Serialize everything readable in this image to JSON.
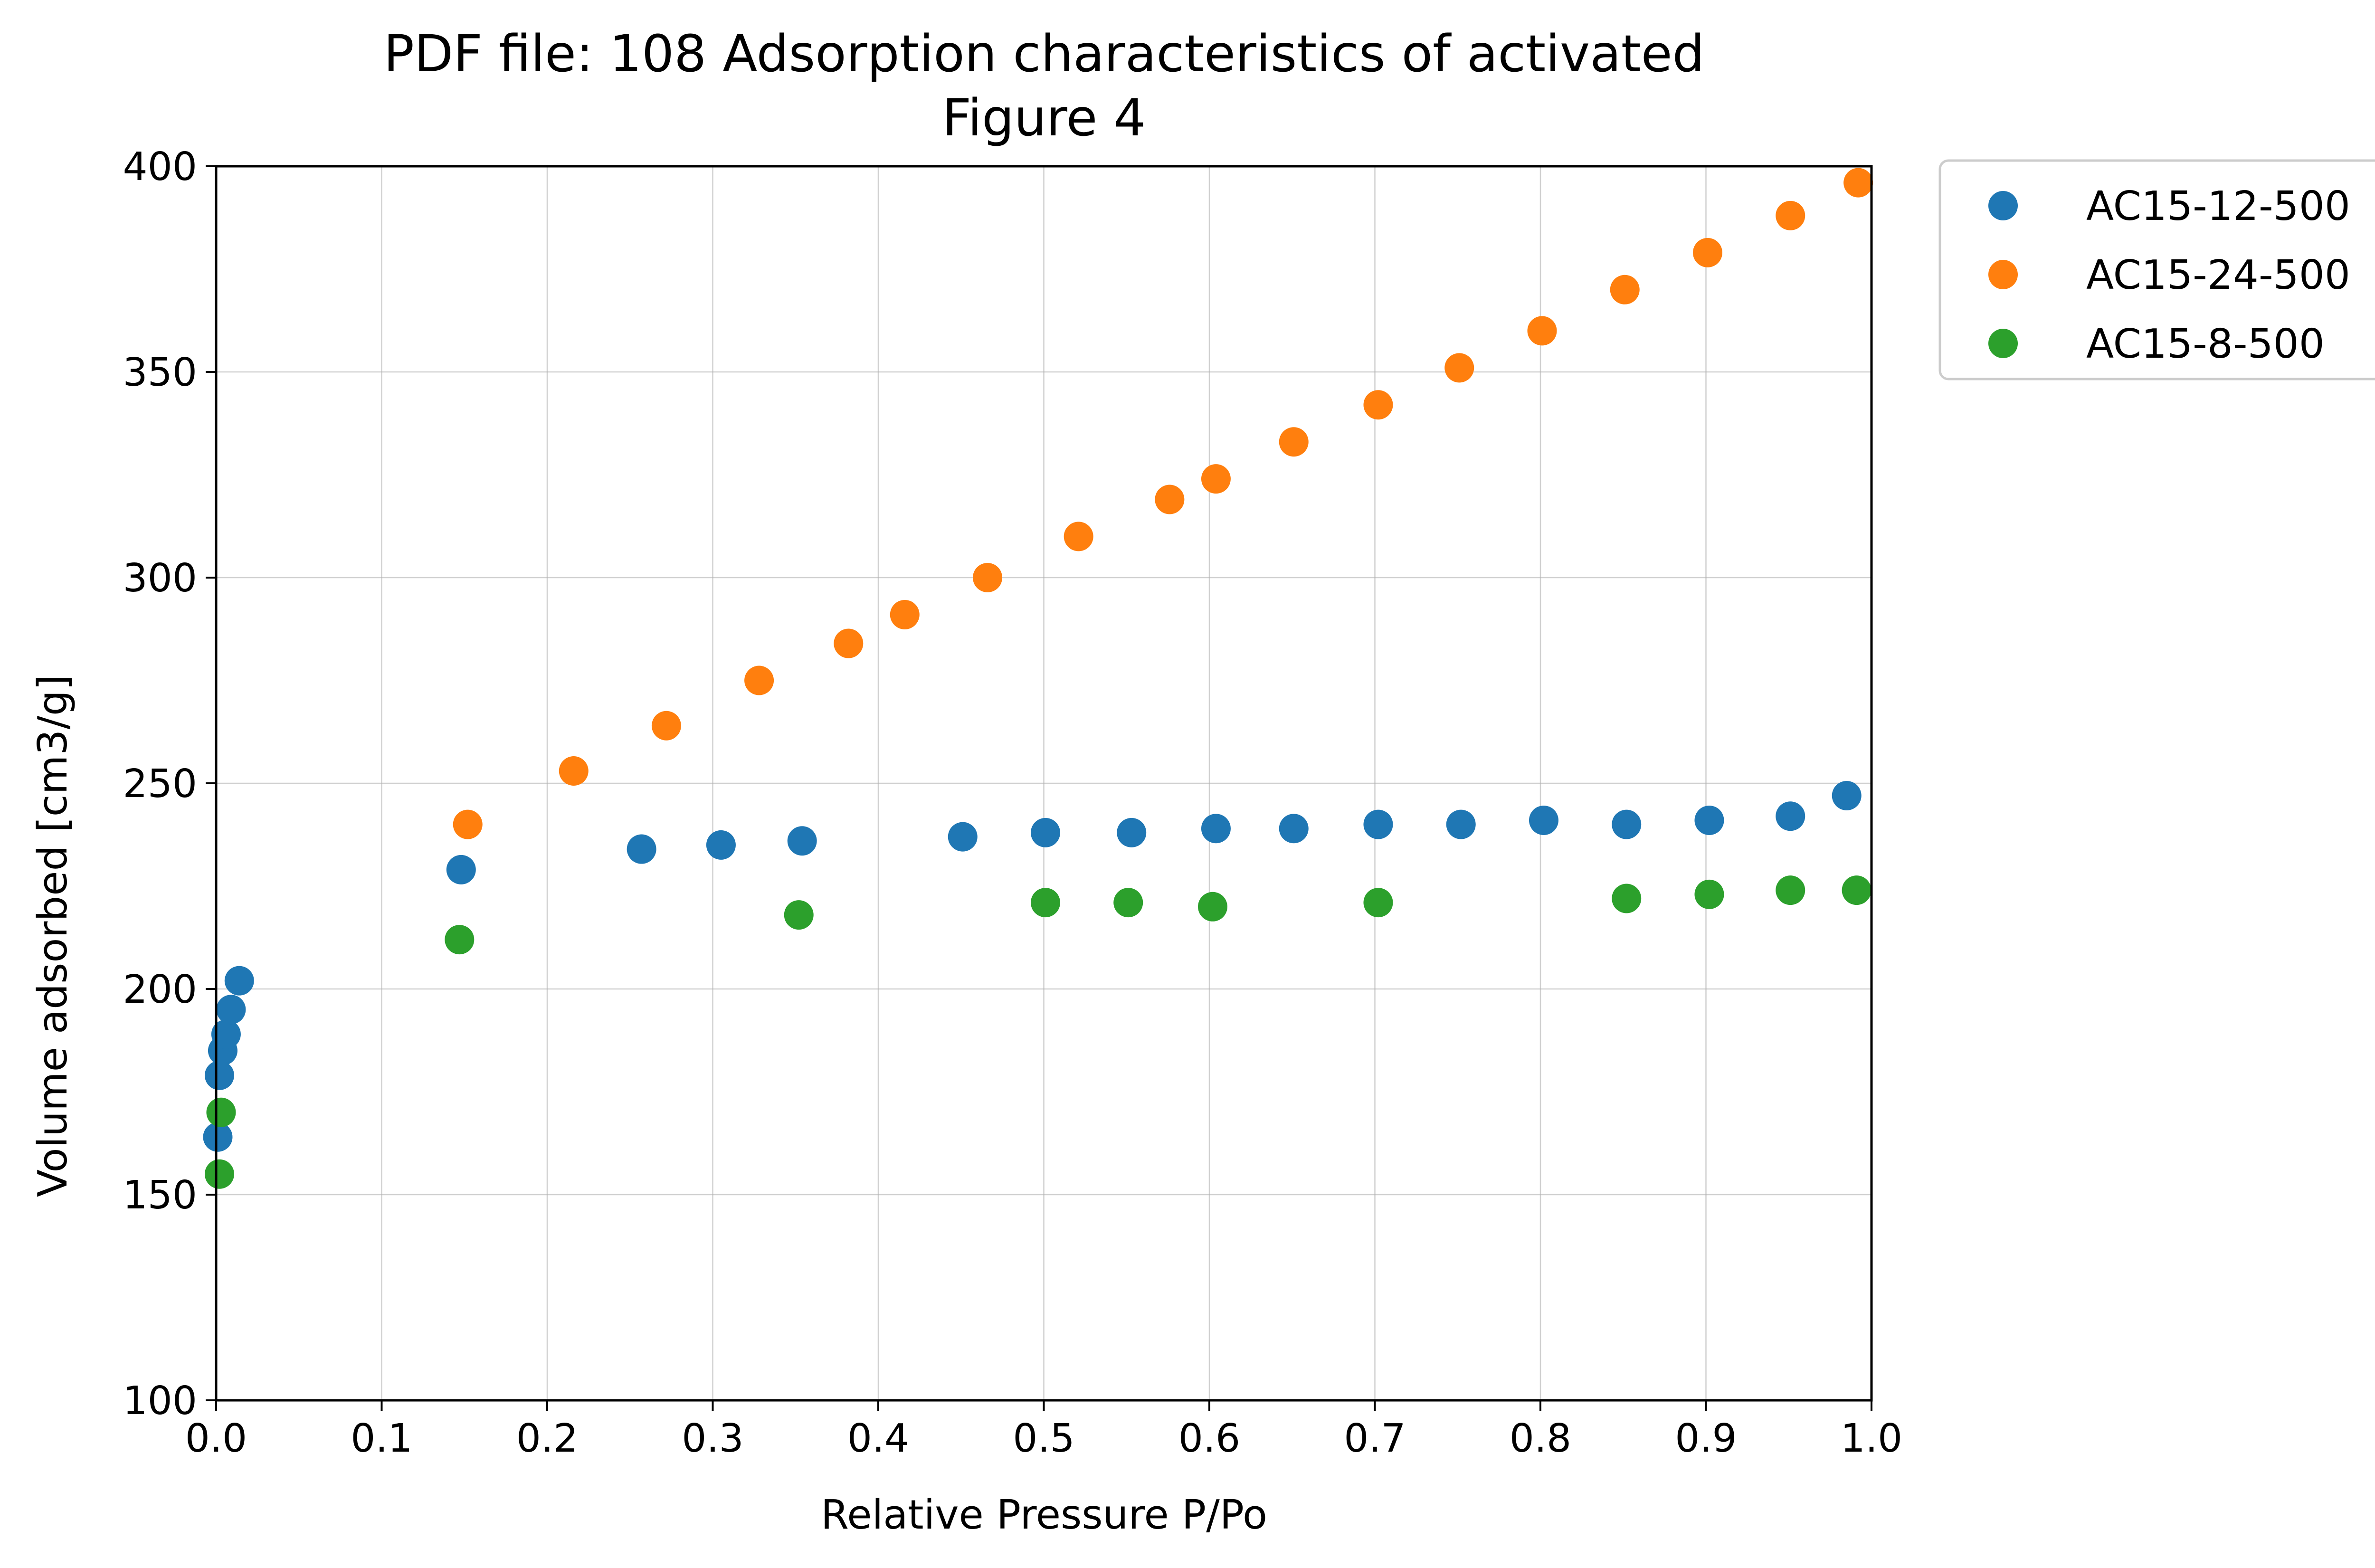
{
  "chart_data": {
    "type": "scatter",
    "title": [
      "PDF file: 108 Adsorption characteristics of activated",
      "Figure 4"
    ],
    "xlabel": "Relative Pressure P/Po",
    "ylabel": "Volume adsorbed [cm3/g]",
    "xlim": [
      0.0,
      1.0
    ],
    "ylim": [
      100,
      400
    ],
    "xticks": [
      "0.0",
      "0.1",
      "0.2",
      "0.3",
      "0.4",
      "0.5",
      "0.6",
      "0.7",
      "0.8",
      "0.9",
      "1.0"
    ],
    "yticks": [
      "100",
      "150",
      "200",
      "250",
      "300",
      "350",
      "400"
    ],
    "grid": true,
    "legend_position": "outside-top-right",
    "series": [
      {
        "name": "AC15-12-500",
        "color": "#1f77b4",
        "points": [
          [
            0.001,
            164
          ],
          [
            0.002,
            179
          ],
          [
            0.004,
            185
          ],
          [
            0.006,
            189
          ],
          [
            0.009,
            195
          ],
          [
            0.014,
            202
          ],
          [
            0.148,
            229
          ],
          [
            0.257,
            234
          ],
          [
            0.305,
            235
          ],
          [
            0.354,
            236
          ],
          [
            0.451,
            237
          ],
          [
            0.501,
            238
          ],
          [
            0.553,
            238
          ],
          [
            0.604,
            239
          ],
          [
            0.651,
            239
          ],
          [
            0.702,
            240
          ],
          [
            0.752,
            240
          ],
          [
            0.802,
            241
          ],
          [
            0.852,
            240
          ],
          [
            0.902,
            241
          ],
          [
            0.951,
            242
          ],
          [
            0.985,
            247
          ]
        ]
      },
      {
        "name": "AC15-24-500",
        "color": "#ff7f0e",
        "points": [
          [
            0.152,
            240
          ],
          [
            0.216,
            253
          ],
          [
            0.272,
            264
          ],
          [
            0.328,
            275
          ],
          [
            0.382,
            284
          ],
          [
            0.416,
            291
          ],
          [
            0.466,
            300
          ],
          [
            0.521,
            310
          ],
          [
            0.576,
            319
          ],
          [
            0.604,
            324
          ],
          [
            0.651,
            333
          ],
          [
            0.702,
            342
          ],
          [
            0.751,
            351
          ],
          [
            0.801,
            360
          ],
          [
            0.851,
            370
          ],
          [
            0.901,
            379
          ],
          [
            0.951,
            388
          ],
          [
            0.992,
            396
          ]
        ]
      },
      {
        "name": "AC15-8-500",
        "color": "#2ca02c",
        "points": [
          [
            0.002,
            155
          ],
          [
            0.003,
            170
          ],
          [
            0.147,
            212
          ],
          [
            0.352,
            218
          ],
          [
            0.501,
            221
          ],
          [
            0.551,
            221
          ],
          [
            0.602,
            220
          ],
          [
            0.702,
            221
          ],
          [
            0.852,
            222
          ],
          [
            0.902,
            223
          ],
          [
            0.951,
            224
          ],
          [
            0.991,
            224
          ]
        ]
      }
    ]
  }
}
